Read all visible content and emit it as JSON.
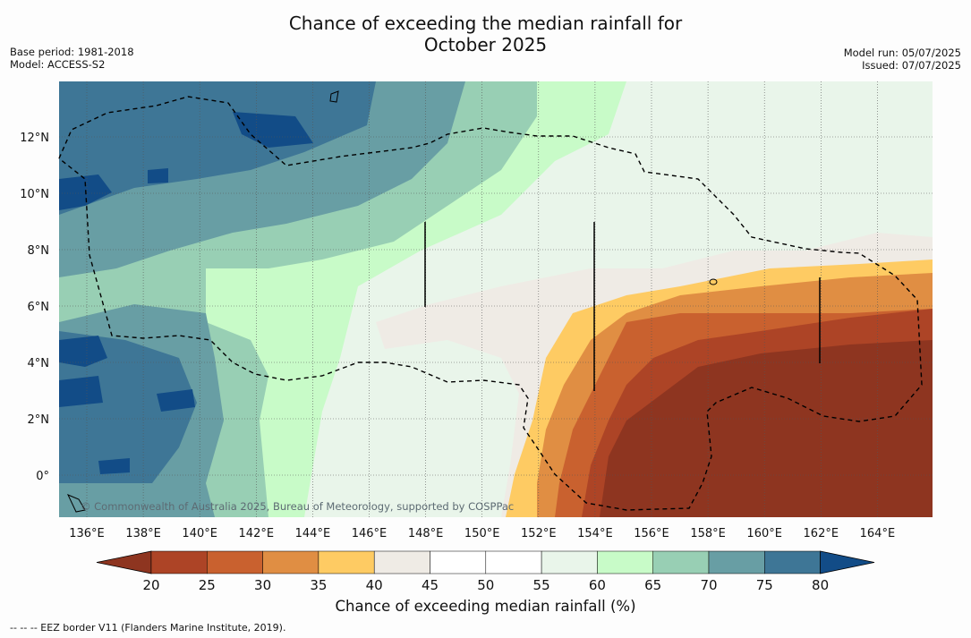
{
  "header": {
    "title_line1": "Chance of exceeding the median rainfall for",
    "title_line2": "October 2025",
    "base_period": "Base period: 1981-2018",
    "model": "Model: ACCESS-S2",
    "model_run": "Model run: 05/07/2025",
    "issued": "Issued: 07/07/2025"
  },
  "map": {
    "lon_labels": [
      "136°E",
      "138°E",
      "140°E",
      "142°E",
      "144°E",
      "146°E",
      "148°E",
      "150°E",
      "152°E",
      "154°E",
      "156°E",
      "158°E",
      "160°E",
      "162°E",
      "164°E"
    ],
    "lat_labels": [
      "12°N",
      "10°N",
      "8°N",
      "6°N",
      "4°N",
      "2°N",
      "0°"
    ],
    "attribution": "© Commonwealth of Australia 2025, Bureau of Meteorology, supported by COSPPac"
  },
  "legend": {
    "colors": [
      "#8e3520",
      "#ad4426",
      "#c9612f",
      "#e08e43",
      "#fecb63",
      "#efebe5",
      "#ffffff",
      "#ffffff",
      "#e9f5ea",
      "#c8fbc8",
      "#98cfb4",
      "#689ea4",
      "#3e7696",
      "#124c87"
    ],
    "ticks": [
      "20",
      "25",
      "30",
      "35",
      "40",
      "45",
      "50",
      "55",
      "60",
      "65",
      "70",
      "75",
      "80"
    ],
    "title": "Chance of exceeding median rainfall (%)"
  },
  "footer": {
    "eez_note": "--  --  -- EEZ border V11 (Flanders Marine Institute, 2019)."
  }
}
